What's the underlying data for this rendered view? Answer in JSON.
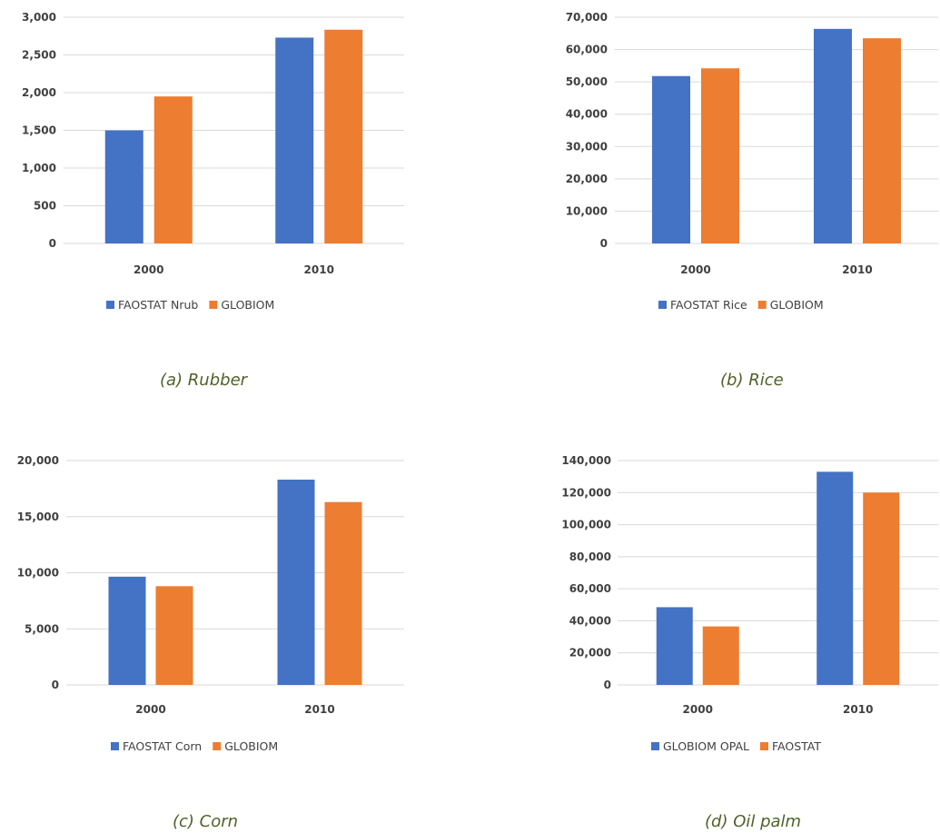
{
  "colors": {
    "blue": "#4472c4",
    "orange": "#ed7d31",
    "grid": "#d9d9d9",
    "axis_text": "#404040",
    "caption": "#4f6228"
  },
  "chart_data": [
    {
      "type": "bar",
      "caption": "(a) Rubber",
      "categories": [
        "2000",
        "2010"
      ],
      "ylim": [
        0,
        3000
      ],
      "yticks": [
        0,
        500,
        1000,
        1500,
        2000,
        2500,
        3000
      ],
      "ytick_labels": [
        "0",
        "500",
        "1,000",
        "1,500",
        "2,000",
        "2,500",
        "3,000"
      ],
      "grid": true,
      "legend_position": "bottom",
      "series": [
        {
          "name": "FAOSTAT Nrub",
          "color": "#4472c4",
          "values": [
            1500,
            2730
          ]
        },
        {
          "name": "GLOBIOM",
          "color": "#ed7d31",
          "values": [
            1950,
            2835
          ]
        }
      ]
    },
    {
      "type": "bar",
      "caption": "(b) Rice",
      "categories": [
        "2000",
        "2010"
      ],
      "ylim": [
        0,
        70000
      ],
      "yticks": [
        0,
        10000,
        20000,
        30000,
        40000,
        50000,
        60000,
        70000
      ],
      "ytick_labels": [
        "0",
        "10,000",
        "20,000",
        "30,000",
        "40,000",
        "50,000",
        "60,000",
        "70,000"
      ],
      "grid": true,
      "legend_position": "bottom",
      "series": [
        {
          "name": "FAOSTAT Rice",
          "color": "#4472c4",
          "values": [
            51800,
            66400
          ]
        },
        {
          "name": "GLOBIOM",
          "color": "#ed7d31",
          "values": [
            54200,
            63500
          ]
        }
      ]
    },
    {
      "type": "bar",
      "caption": "(c) Corn",
      "categories": [
        "2000",
        "2010"
      ],
      "ylim": [
        0,
        20000
      ],
      "yticks": [
        0,
        5000,
        10000,
        15000,
        20000
      ],
      "ytick_labels": [
        "0",
        "5,000",
        "10,000",
        "15,000",
        "20,000"
      ],
      "grid": true,
      "legend_position": "bottom",
      "series": [
        {
          "name": "FAOSTAT Corn",
          "color": "#4472c4",
          "values": [
            9650,
            18300
          ]
        },
        {
          "name": "GLOBIOM",
          "color": "#ed7d31",
          "values": [
            8800,
            16300
          ]
        }
      ]
    },
    {
      "type": "bar",
      "caption": "(d) Oil palm",
      "categories": [
        "2000",
        "2010"
      ],
      "ylim": [
        0,
        140000
      ],
      "yticks": [
        0,
        20000,
        40000,
        60000,
        80000,
        100000,
        120000,
        140000
      ],
      "ytick_labels": [
        "0",
        "20,000",
        "40,000",
        "60,000",
        "80,000",
        "100,000",
        "120,000",
        "140,000"
      ],
      "grid": true,
      "legend_position": "bottom",
      "series": [
        {
          "name": "GLOBIOM OPAL",
          "color": "#4472c4",
          "values": [
            48500,
            133000
          ]
        },
        {
          "name": "FAOSTAT",
          "color": "#ed7d31",
          "values": [
            36500,
            120000
          ]
        }
      ]
    }
  ]
}
